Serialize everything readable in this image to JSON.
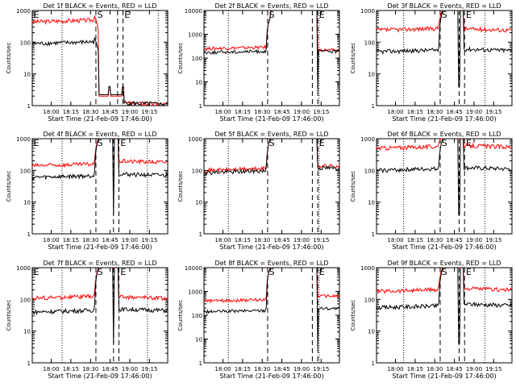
{
  "colors": {
    "events": "#000000",
    "lld": "#ff0000",
    "axes": "#000000",
    "background": "#ffffff"
  },
  "chart_data": [
    {
      "type": "line",
      "title": "Det 1f BLACK = Events, RED = LLD",
      "xlabel": "Start Time (21-Feb-09 17:46:00)",
      "ylabel": "Counts/sec",
      "yscale": "log",
      "ylim": [
        1,
        1000
      ],
      "xticklabels": [
        "18:00",
        "18:15",
        "18:30",
        "18:45",
        "19:00",
        "19:15"
      ],
      "yticklabels": [
        "1",
        "10",
        "100",
        "1000"
      ],
      "annotations": [
        "E",
        "S",
        "E"
      ],
      "dotted_x": [
        0.22,
        0.93
      ],
      "dashed_x": [
        0.47,
        0.63,
        0.67
      ],
      "series": [
        {
          "color": "red",
          "baseline": 440,
          "jump": 1,
          "drop": 1.1,
          "dip_x": [
            0.57,
            0.67
          ]
        },
        {
          "color": "black",
          "baseline": 90,
          "jump": 1.1,
          "drop": 1.1,
          "dip_x": [
            0.57,
            0.67
          ]
        }
      ]
    },
    {
      "type": "line",
      "title": "Det 2f BLACK = Events, RED = LLD",
      "xlabel": "Start Time (21-Feb-09 17:46:00)",
      "ylabel": "Counts/sec",
      "yscale": "log",
      "ylim": [
        1,
        10000
      ],
      "xticklabels": [
        "18:00",
        "18:15",
        "18:30",
        "18:45",
        "19:00",
        "19:15"
      ],
      "yticklabels": [
        "1",
        "10",
        "100",
        "1000",
        "10000"
      ],
      "annotations": [
        "",
        "S",
        "E"
      ],
      "dotted_x": [
        0.18,
        0.85
      ],
      "dashed_x": [
        0.47,
        0.8,
        0.84
      ],
      "series": [
        {
          "color": "red",
          "baseline": 250,
          "jump": 5000,
          "drop": 200,
          "dip_x": []
        },
        {
          "color": "black",
          "baseline": 170,
          "jump": 5000,
          "drop": 180,
          "dip_x": [
            0.84
          ]
        }
      ]
    },
    {
      "type": "line",
      "title": "Det 3f BLACK = Events, RED = LLD",
      "xlabel": "Start Time (21-Feb-09 17:46:00)",
      "ylabel": "Counts/sec",
      "yscale": "log",
      "ylim": [
        1,
        1000
      ],
      "xticklabels": [
        "18:00",
        "18:15",
        "18:30",
        "18:45",
        "19:00",
        "19:15"
      ],
      "yticklabels": [
        "1",
        "10",
        "100",
        "1000"
      ],
      "annotations": [
        "",
        "S",
        "E"
      ],
      "dotted_x": [
        0.2,
        0.8
      ],
      "dashed_x": [
        0.47,
        0.61,
        0.65
      ],
      "series": [
        {
          "color": "red",
          "baseline": 240,
          "jump": 1000,
          "drop": 240,
          "dip_x": []
        },
        {
          "color": "black",
          "baseline": 50,
          "jump": 1000,
          "drop": 55,
          "dip_x": [
            0.61
          ]
        }
      ]
    },
    {
      "type": "line",
      "title": "Det 4f BLACK = Events, RED = LLD",
      "xlabel": "Start Time (21-Feb-09 17:46:00)",
      "ylabel": "Counts/sec",
      "yscale": "log",
      "ylim": [
        1,
        1000
      ],
      "xticklabels": [
        "18:00",
        "18:15",
        "18:30",
        "18:45",
        "19:00",
        "19:15"
      ],
      "yticklabels": [
        "1",
        "10",
        "100",
        "1000"
      ],
      "annotations": [
        "E",
        "S",
        "E"
      ],
      "dotted_x": [
        0.22,
        0.85
      ],
      "dashed_x": [
        0.47,
        0.6,
        0.64
      ],
      "series": [
        {
          "color": "red",
          "baseline": 140,
          "jump": 1000,
          "drop": 180,
          "dip_x": []
        },
        {
          "color": "black",
          "baseline": 60,
          "jump": 1000,
          "drop": 70,
          "dip_x": [
            0.6
          ]
        }
      ]
    },
    {
      "type": "line",
      "title": "Det 5f BLACK = Events, RED = LLD",
      "xlabel": "Start Time (21-Feb-09 17:46:00)",
      "ylabel": "Counts/sec",
      "yscale": "log",
      "ylim": [
        1,
        1000
      ],
      "xticklabels": [
        "18:00",
        "18:15",
        "18:30",
        "18:45",
        "19:00",
        "19:15"
      ],
      "yticklabels": [
        "1",
        "10",
        "100",
        "1000"
      ],
      "annotations": [
        "",
        "S",
        "E"
      ],
      "dotted_x": [
        0.18,
        0.85
      ],
      "dashed_x": [
        0.47,
        0.8,
        0.84
      ],
      "series": [
        {
          "color": "red",
          "baseline": 100,
          "jump": 1000,
          "drop": 130,
          "dip_x": []
        },
        {
          "color": "black",
          "baseline": 85,
          "jump": 1000,
          "drop": 110,
          "dip_x": []
        }
      ]
    },
    {
      "type": "line",
      "title": "Det 6f BLACK = Events, RED = LLD",
      "xlabel": "Start Time (21-Feb-09 17:46:00)",
      "ylabel": "Counts/sec",
      "yscale": "log",
      "ylim": [
        1,
        1000
      ],
      "xticklabels": [
        "18:00",
        "18:15",
        "18:30",
        "18:45",
        "19:00",
        "19:15"
      ],
      "yticklabels": [
        "1",
        "10",
        "100",
        "1000"
      ],
      "annotations": [
        "",
        "S",
        "E"
      ],
      "dotted_x": [
        0.2,
        0.8
      ],
      "dashed_x": [
        0.47,
        0.61,
        0.65
      ],
      "series": [
        {
          "color": "red",
          "baseline": 500,
          "jump": 1000,
          "drop": 550,
          "dip_x": []
        },
        {
          "color": "black",
          "baseline": 100,
          "jump": 1000,
          "drop": 110,
          "dip_x": [
            0.61
          ]
        }
      ]
    },
    {
      "type": "line",
      "title": "Det 7f BLACK = Events, RED = LLD",
      "xlabel": "Start Time (21-Feb-09 17:46:00)",
      "ylabel": "Counts/sec",
      "yscale": "log",
      "ylim": [
        1,
        1000
      ],
      "xticklabels": [
        "18:00",
        "18:15",
        "18:30",
        "18:45",
        "19:00",
        "19:15"
      ],
      "yticklabels": [
        "1",
        "10",
        "100",
        "1000"
      ],
      "annotations": [
        "E",
        "S",
        "E"
      ],
      "dotted_x": [
        0.22,
        0.85
      ],
      "dashed_x": [
        0.47,
        0.6,
        0.64
      ],
      "series": [
        {
          "color": "red",
          "baseline": 110,
          "jump": 1000,
          "drop": 110,
          "dip_x": []
        },
        {
          "color": "black",
          "baseline": 40,
          "jump": 1000,
          "drop": 45,
          "dip_x": [
            0.6
          ]
        }
      ]
    },
    {
      "type": "line",
      "title": "Det 8f BLACK = Events, RED = LLD",
      "xlabel": "Start Time (21-Feb-09 17:46:00)",
      "ylabel": "Counts/sec",
      "yscale": "log",
      "ylim": [
        1,
        10000
      ],
      "xticklabels": [
        "18:00",
        "18:15",
        "18:30",
        "18:45",
        "19:00",
        "19:15"
      ],
      "yticklabels": [
        "1",
        "10",
        "100",
        "1000",
        "10000"
      ],
      "annotations": [
        "",
        "S",
        "E"
      ],
      "dotted_x": [
        0.18,
        0.85
      ],
      "dashed_x": [
        0.47,
        0.8,
        0.84
      ],
      "series": [
        {
          "color": "red",
          "baseline": 400,
          "jump": 10000,
          "drop": 600,
          "dip_x": []
        },
        {
          "color": "black",
          "baseline": 140,
          "jump": 10000,
          "drop": 180,
          "dip_x": [
            0.84
          ]
        }
      ]
    },
    {
      "type": "line",
      "title": "Det 9f BLACK = Events, RED = LLD",
      "xlabel": "Start Time (21-Feb-09 17:46:00)",
      "ylabel": "Counts/sec",
      "yscale": "log",
      "ylim": [
        1,
        1000
      ],
      "xticklabels": [
        "18:00",
        "18:15",
        "18:30",
        "18:45",
        "19:00",
        "19:15"
      ],
      "yticklabels": [
        "1",
        "10",
        "100",
        "1000"
      ],
      "annotations": [
        "",
        "S",
        "E"
      ],
      "dotted_x": [
        0.2,
        0.8
      ],
      "dashed_x": [
        0.47,
        0.61,
        0.65
      ],
      "series": [
        {
          "color": "red",
          "baseline": 180,
          "jump": 1000,
          "drop": 200,
          "dip_x": []
        },
        {
          "color": "black",
          "baseline": 55,
          "jump": 1000,
          "drop": 65,
          "dip_x": [
            0.61
          ]
        }
      ]
    }
  ]
}
